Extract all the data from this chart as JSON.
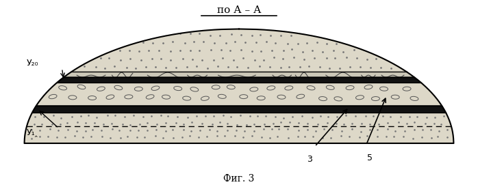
{
  "title": "по А – А",
  "caption": "Фиг. 3",
  "label_u20": "У₂₀",
  "label_u18": "У₁‸",
  "label_3": "3",
  "label_5": "5",
  "bg_color": "#ffffff",
  "fig_width": 6.98,
  "fig_height": 2.77,
  "dpi": 100
}
